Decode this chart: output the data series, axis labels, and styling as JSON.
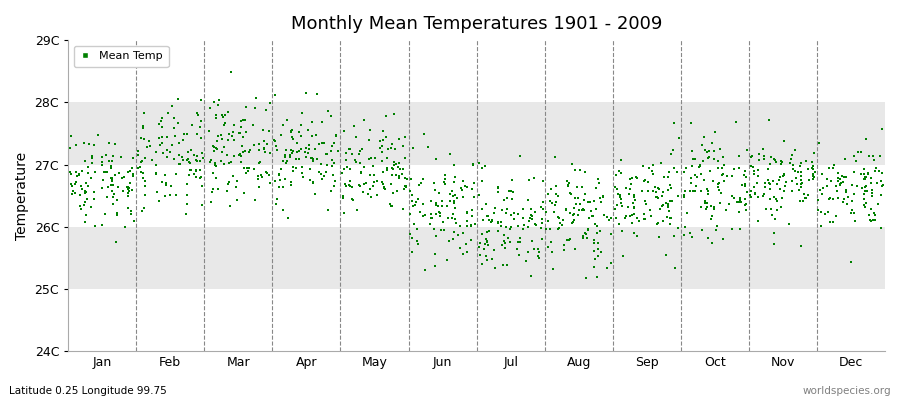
{
  "title": "Monthly Mean Temperatures 1901 - 2009",
  "ylabel": "Temperature",
  "xlabel_bottom_left": "Latitude 0.25 Longitude 99.75",
  "xlabel_bottom_right": "worldspecies.org",
  "ylim": [
    24,
    29
  ],
  "yticks": [
    24,
    25,
    26,
    27,
    28,
    29
  ],
  "ytick_labels": [
    "24C",
    "25C",
    "26C",
    "27C",
    "28C",
    "29C"
  ],
  "months": [
    "Jan",
    "Feb",
    "Mar",
    "Apr",
    "May",
    "Jun",
    "Jul",
    "Aug",
    "Sep",
    "Oct",
    "Nov",
    "Dec"
  ],
  "marker_color": "#008000",
  "marker": "s",
  "marker_size": 2.0,
  "background_color": "#f0f0f0",
  "stripe_color_light": "#ffffff",
  "stripe_color_dark": "#e8e8e8",
  "fig_background": "#ffffff",
  "legend_label": "Mean Temp",
  "n_years": 109,
  "seed": 42,
  "monthly_means": [
    26.75,
    27.05,
    27.25,
    27.15,
    26.85,
    26.25,
    26.05,
    26.15,
    26.45,
    26.65,
    26.75,
    26.65
  ],
  "monthly_stds": [
    0.38,
    0.42,
    0.4,
    0.38,
    0.38,
    0.42,
    0.42,
    0.42,
    0.38,
    0.38,
    0.35,
    0.35
  ]
}
